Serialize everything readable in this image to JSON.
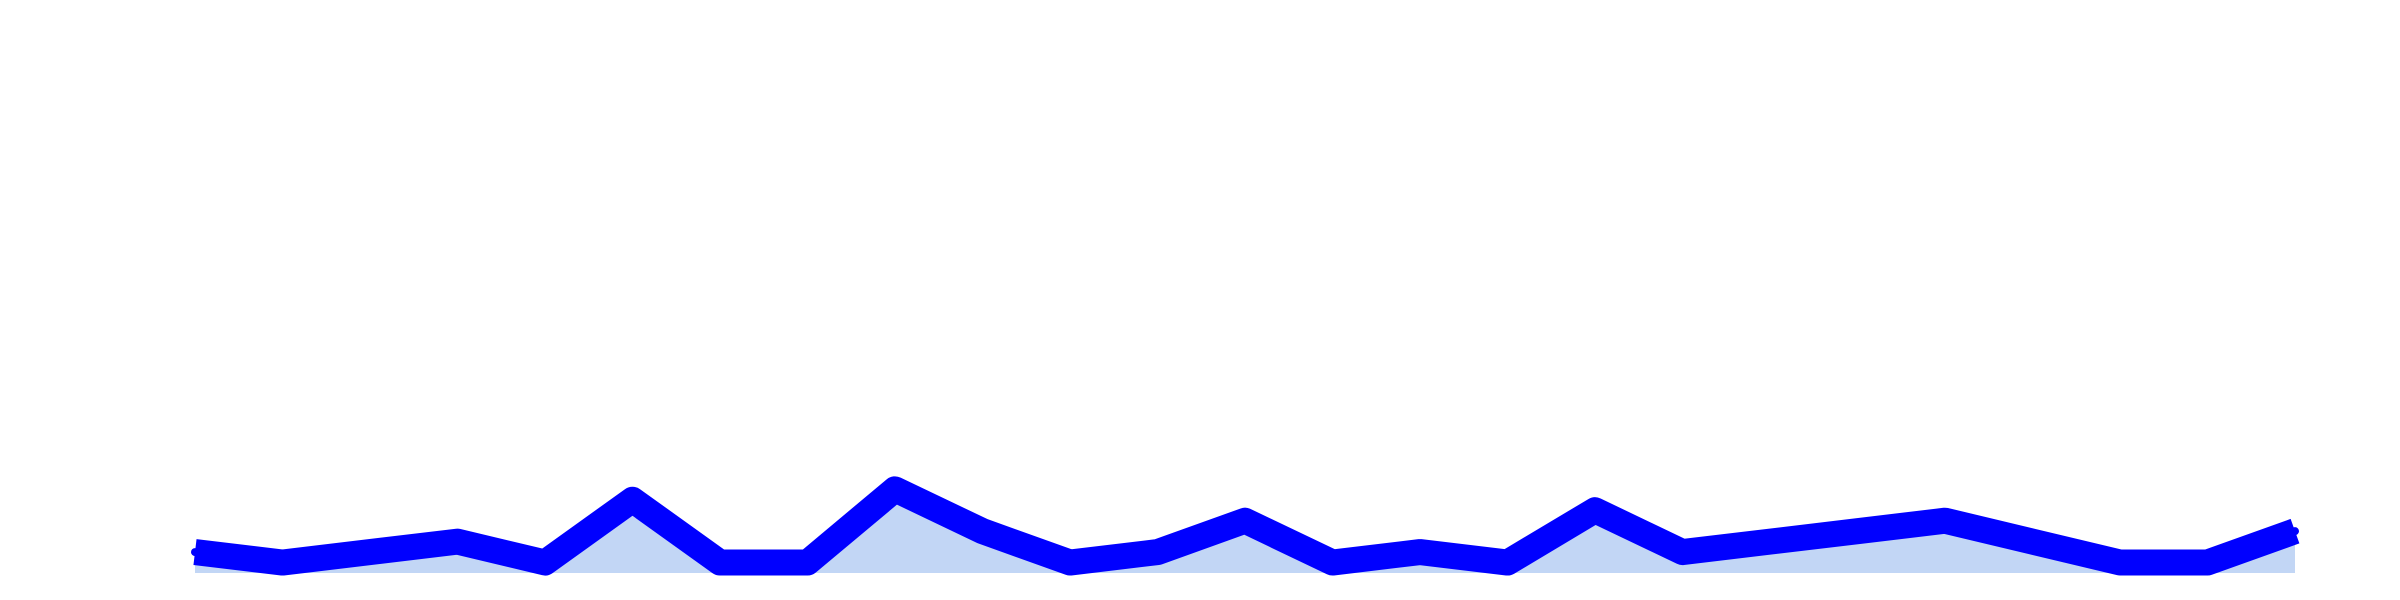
{
  "chart_data": {
    "type": "area",
    "title": "",
    "xlabel": "",
    "ylabel": "",
    "points": 25,
    "values": [
      2,
      1,
      2,
      3,
      1,
      7,
      1,
      1,
      8,
      4,
      1,
      2,
      5,
      1,
      2,
      1,
      6,
      2,
      3,
      4,
      5,
      3,
      1,
      1,
      4
    ],
    "ylim": [
      0,
      50
    ],
    "grid": false,
    "legend": "none",
    "colors": {
      "line": "#0000ff",
      "fill": "#c2d6f5",
      "background": "#ffffff"
    }
  }
}
